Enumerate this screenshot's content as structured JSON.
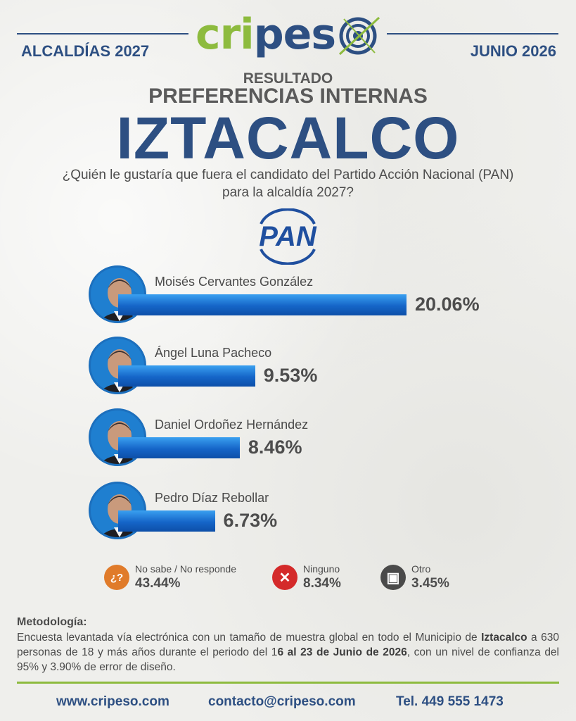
{
  "header": {
    "brand_prefix": "cri",
    "brand_mid": "pes",
    "left_label": "ALCALDÍAS 2027",
    "right_label": "JUNIO 2026",
    "brand_color": "#2d4f82",
    "accent_color": "#8dbb3e"
  },
  "titles": {
    "resultado": "RESULTADO",
    "preferencias": "PREFERENCIAS INTERNAS",
    "city": "IZTACALCO",
    "question_line1": "¿Quién le gustaría que fuera el candidato del Partido Acción Nacional (PAN)",
    "question_line2": "para la alcaldía 2027?"
  },
  "party_logo_text": "PAN",
  "chart_data": {
    "type": "bar",
    "orientation": "horizontal",
    "categories": [
      "Moisés Cervantes González",
      "Ángel Luna Pacheco",
      "Daniel Ordoñez Hernández",
      "Pedro Díaz Rebollar"
    ],
    "values": [
      20.06,
      9.53,
      8.46,
      6.73
    ],
    "value_labels": [
      "20.06%",
      "9.53%",
      "8.46%",
      "6.73%"
    ],
    "bar_color": "#1565c8"
  },
  "others": [
    {
      "label": "No sabe / No responde",
      "value": "43.44%",
      "icon": "question-icon",
      "color": "#e07b2a"
    },
    {
      "label": "Ninguno",
      "value": "8.34%",
      "icon": "x-icon",
      "color": "#d42a2a"
    },
    {
      "label": "Otro",
      "value": "3.45%",
      "icon": "ballot-icon",
      "color": "#4a4a4a"
    }
  ],
  "methodology": {
    "title": "Metodología:",
    "text_1": "Encuesta levantada vía electrónica con un tamaño de muestra global en todo el Municipio de ",
    "city_bold": "Iztacalco",
    "text_2": " a 630 personas de 18 y más años durante el periodo del 1",
    "dates_bold": "6 al 23 de Junio de 2026",
    "text_3": ", con un nivel de confianza del 95% y 3.90% de error de diseño."
  },
  "footer": {
    "website": "www.cripeso.com",
    "email": "contacto@cripeso.com",
    "phone": "Tel. 449 555 1473"
  }
}
